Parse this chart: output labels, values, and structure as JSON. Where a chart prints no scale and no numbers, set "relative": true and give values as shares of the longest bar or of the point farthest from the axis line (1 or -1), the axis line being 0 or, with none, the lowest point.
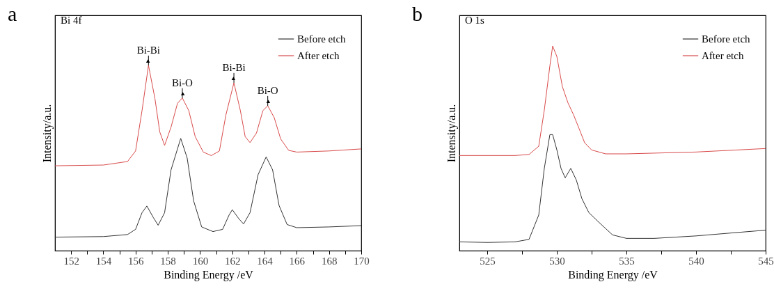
{
  "chart_data": [
    {
      "type": "line",
      "title": "a",
      "xlabel": "Binding Energy /eV",
      "ylabel": "Intensity/a.u.",
      "relative": true,
      "tick_labels": "x",
      "legend": "top right",
      "grid": false,
      "marker": "none",
      "line_style": "solid",
      "xlim": [
        151,
        170
      ],
      "xticks": [
        152,
        {
          "value": 153,
          "label": null
        },
        154,
        {
          "value": 155,
          "label": null
        },
        156,
        {
          "value": 157,
          "label": null
        },
        158,
        {
          "value": 159,
          "label": null
        },
        160,
        {
          "value": 161,
          "label": null
        },
        162,
        {
          "value": 163,
          "label": null
        },
        164,
        {
          "value": 165,
          "label": null
        },
        166,
        {
          "value": 167,
          "label": null
        },
        168,
        {
          "value": 169,
          "label": null
        },
        170
      ],
      "annotations": [
        "Bi 4f",
        {
          "text": "Bi-Bi",
          "x": 156.8,
          "y": 1.0
        },
        {
          "text": "Bi-O",
          "x": 158.9,
          "y": 0.824
        },
        {
          "text": "Bi-Bi",
          "x": 162.1,
          "y": 0.906
        },
        {
          "text": "Bi-O",
          "x": 164.2,
          "y": 0.782
        }
      ],
      "series": [
        {
          "name": "Before etch",
          "color": "#333333",
          "x": [
            151,
            154,
            155.5,
            156,
            156.4,
            156.7,
            157.1,
            157.4,
            157.8,
            158.2,
            158.8,
            159.2,
            159.6,
            160.1,
            160.8,
            161.4,
            161.8,
            162.0,
            162.4,
            162.7,
            163.1,
            163.6,
            164.1,
            164.5,
            164.9,
            165.4,
            166,
            168,
            170
          ],
          "values": [
            0.073,
            0.076,
            0.087,
            0.115,
            0.205,
            0.241,
            0.179,
            0.137,
            0.205,
            0.436,
            0.606,
            0.5,
            0.269,
            0.128,
            0.103,
            0.115,
            0.192,
            0.221,
            0.173,
            0.144,
            0.205,
            0.41,
            0.506,
            0.436,
            0.244,
            0.141,
            0.124,
            0.128,
            0.135
          ]
        },
        {
          "name": "After etch",
          "color": "#d94a4a",
          "x": [
            151,
            154,
            155.5,
            156,
            156.4,
            156.8,
            157.2,
            157.5,
            157.8,
            158.2,
            158.6,
            158.9,
            159.3,
            159.7,
            160.2,
            160.7,
            161.2,
            161.6,
            162.1,
            162.5,
            162.8,
            163.1,
            163.5,
            163.9,
            164.2,
            164.6,
            165.0,
            165.5,
            166,
            168,
            170
          ],
          "values": [
            0.458,
            0.462,
            0.481,
            0.538,
            0.756,
            1.0,
            0.821,
            0.641,
            0.568,
            0.667,
            0.795,
            0.824,
            0.756,
            0.615,
            0.532,
            0.513,
            0.538,
            0.731,
            0.906,
            0.756,
            0.615,
            0.583,
            0.635,
            0.756,
            0.782,
            0.718,
            0.603,
            0.541,
            0.532,
            0.538,
            0.549
          ]
        }
      ]
    },
    {
      "type": "line",
      "title": "b",
      "xlabel": "Binding Energy /eV",
      "ylabel": "Intensity/a.u.",
      "relative": true,
      "tick_labels": "x",
      "legend": "top right",
      "grid": false,
      "marker": "none",
      "line_style": "solid",
      "xlim": [
        523,
        545
      ],
      "xticks": [
        525,
        {
          "value": 527.5,
          "label": null
        },
        530,
        {
          "value": 532.5,
          "label": null
        },
        535,
        {
          "value": 537.5,
          "label": null
        },
        540,
        {
          "value": 542.5,
          "label": null
        },
        545
      ],
      "annotations": [
        "O 1s"
      ],
      "series": [
        {
          "name": "Before etch",
          "color": "#333333",
          "x": [
            523,
            525,
            527,
            528,
            528.7,
            529.1,
            529.5,
            529.7,
            530.0,
            530.3,
            530.6,
            531.0,
            531.4,
            531.8,
            532.3,
            533,
            534,
            535,
            537,
            540,
            543,
            545
          ],
          "values": [
            0.043,
            0.04,
            0.043,
            0.055,
            0.174,
            0.402,
            0.567,
            0.567,
            0.493,
            0.402,
            0.356,
            0.402,
            0.345,
            0.254,
            0.186,
            0.14,
            0.077,
            0.06,
            0.06,
            0.072,
            0.089,
            0.1
          ]
        },
        {
          "name": "After etch",
          "color": "#d94a4a",
          "x": [
            523,
            525,
            527,
            528,
            528.7,
            529.1,
            529.5,
            529.7,
            530.0,
            530.4,
            530.8,
            531.2,
            531.6,
            532.0,
            532.5,
            533.5,
            535,
            540,
            545
          ],
          "values": [
            0.465,
            0.465,
            0.465,
            0.47,
            0.51,
            0.687,
            0.903,
            1.0,
            0.949,
            0.801,
            0.722,
            0.664,
            0.596,
            0.527,
            0.492,
            0.473,
            0.473,
            0.482,
            0.499
          ]
        }
      ]
    }
  ]
}
